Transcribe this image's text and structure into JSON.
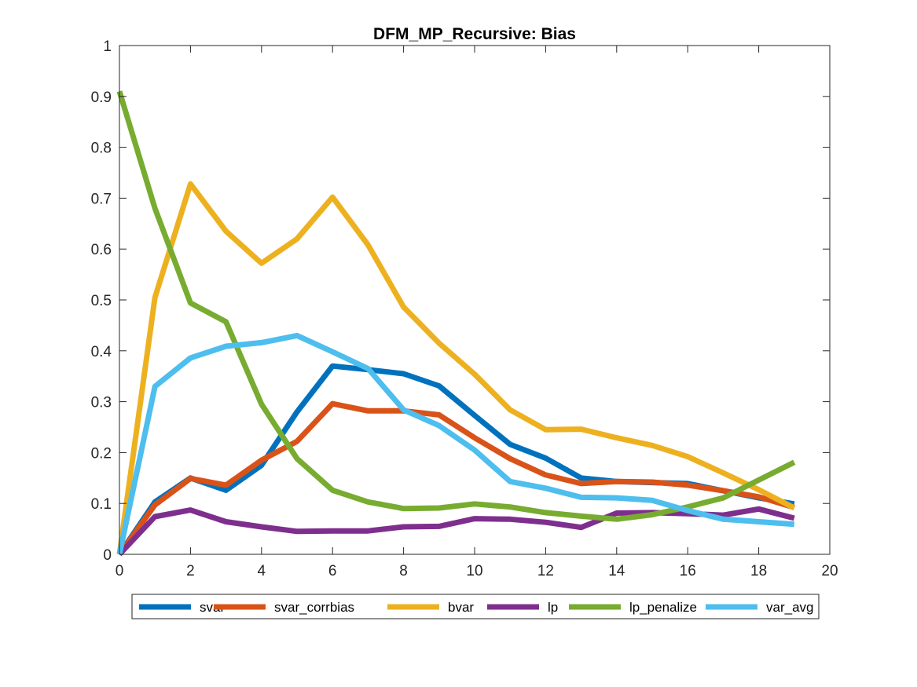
{
  "chart_data": {
    "type": "line",
    "title": "DFM_MP_Recursive: Bias",
    "xlabel": "",
    "ylabel": "",
    "xlim": [
      0,
      20
    ],
    "ylim": [
      0,
      1
    ],
    "xticks": [
      "0",
      "2",
      "4",
      "6",
      "8",
      "10",
      "12",
      "14",
      "16",
      "18",
      "20"
    ],
    "yticks": [
      "0",
      "0.1",
      "0.2",
      "0.3",
      "0.4",
      "0.5",
      "0.6",
      "0.7",
      "0.8",
      "0.9",
      "1"
    ],
    "grid": false,
    "legend_position": "bottom-outside",
    "x": [
      0,
      1,
      2,
      3,
      4,
      5,
      6,
      7,
      8,
      9,
      10,
      11,
      12,
      13,
      14,
      15,
      16,
      17,
      18,
      19
    ],
    "series": [
      {
        "name": "svar",
        "color": "#0072BD",
        "values": [
          0.0,
          0.103,
          0.15,
          0.126,
          0.175,
          0.28,
          0.37,
          0.363,
          0.355,
          0.331,
          0.273,
          0.216,
          0.189,
          0.15,
          0.143,
          0.141,
          0.139,
          0.125,
          0.111,
          0.099
        ]
      },
      {
        "name": "svar_corrbias",
        "color": "#D95319",
        "values": [
          0.0,
          0.097,
          0.149,
          0.136,
          0.185,
          0.222,
          0.296,
          0.282,
          0.282,
          0.274,
          0.229,
          0.188,
          0.156,
          0.139,
          0.143,
          0.142,
          0.136,
          0.125,
          0.113,
          0.092
        ]
      },
      {
        "name": "bvar",
        "color": "#EDB120",
        "values": [
          0.0,
          0.505,
          0.728,
          0.635,
          0.572,
          0.62,
          0.702,
          0.608,
          0.486,
          0.415,
          0.354,
          0.284,
          0.245,
          0.246,
          0.229,
          0.214,
          0.192,
          0.16,
          0.127,
          0.091
        ]
      },
      {
        "name": "lp",
        "color": "#7E2F8E",
        "values": [
          0.0,
          0.074,
          0.087,
          0.064,
          0.054,
          0.045,
          0.046,
          0.046,
          0.054,
          0.055,
          0.07,
          0.069,
          0.063,
          0.053,
          0.081,
          0.082,
          0.08,
          0.077,
          0.089,
          0.071
        ]
      },
      {
        "name": "lp_penalize",
        "color": "#77AC30",
        "values": [
          0.91,
          0.68,
          0.494,
          0.457,
          0.295,
          0.188,
          0.126,
          0.103,
          0.09,
          0.091,
          0.099,
          0.093,
          0.082,
          0.075,
          0.069,
          0.078,
          0.093,
          0.111,
          0.146,
          0.181
        ]
      },
      {
        "name": "var_avg",
        "color": "#4DBEEE",
        "values": [
          0.0,
          0.33,
          0.386,
          0.409,
          0.416,
          0.43,
          0.398,
          0.365,
          0.284,
          0.253,
          0.205,
          0.143,
          0.13,
          0.112,
          0.111,
          0.106,
          0.086,
          0.069,
          0.064,
          0.059
        ]
      }
    ]
  }
}
